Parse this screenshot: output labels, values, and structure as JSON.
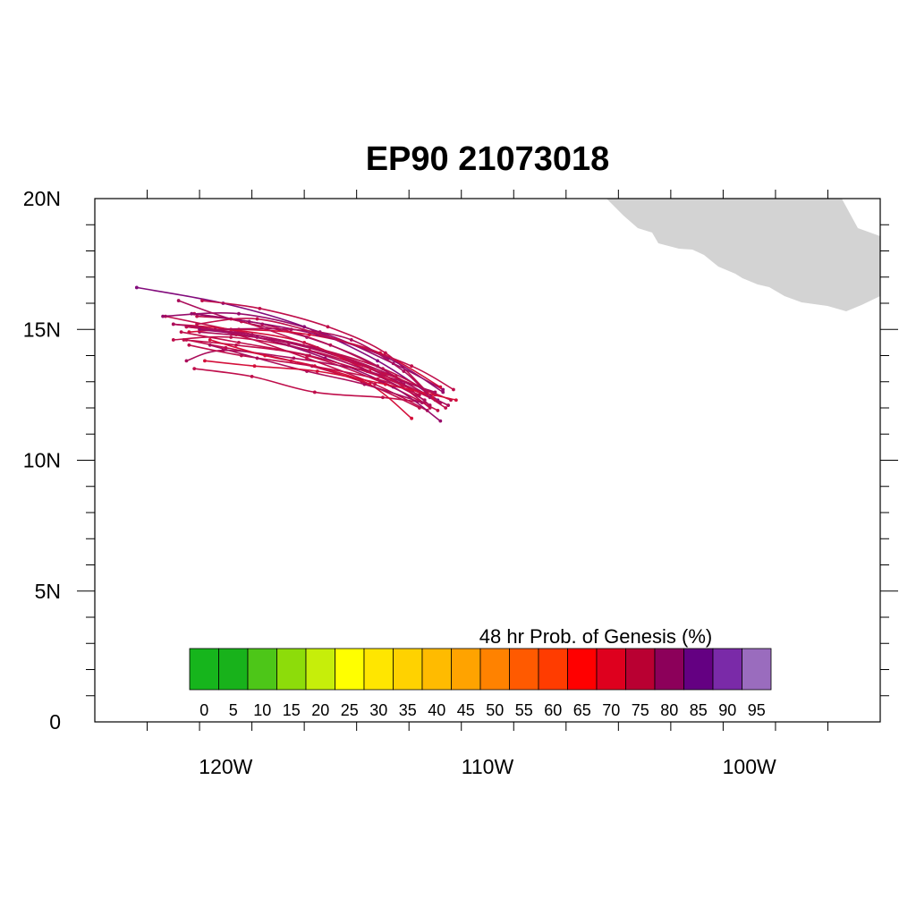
{
  "title": "EP90 21073018",
  "map": {
    "lon_range": [
      -125,
      -95
    ],
    "lat_range": [
      0,
      20
    ],
    "land_color": "#d3d3d3",
    "y_ticks": [
      {
        "value": 20,
        "label": "20N"
      },
      {
        "value": 15,
        "label": "15N"
      },
      {
        "value": 10,
        "label": "10N"
      },
      {
        "value": 5,
        "label": "5N"
      },
      {
        "value": 0,
        "label": "0"
      }
    ],
    "x_ticks": [
      {
        "value": -120,
        "label": "120W"
      },
      {
        "value": -110,
        "label": "110W"
      },
      {
        "value": -100,
        "label": "100W"
      }
    ]
  },
  "legend": {
    "title": "48 hr Prob. of Genesis (%)",
    "labels": [
      "0",
      "5",
      "10",
      "15",
      "20",
      "25",
      "30",
      "35",
      "40",
      "45",
      "50",
      "55",
      "60",
      "65",
      "70",
      "75",
      "80",
      "85",
      "90",
      "95"
    ],
    "colors": [
      "#16b51c",
      "#18b21b",
      "#4dc618",
      "#8ddc0a",
      "#c6ee0a",
      "#ffff00",
      "#ffe600",
      "#ffd200",
      "#ffbb00",
      "#ffa300",
      "#ff8200",
      "#ff5a00",
      "#ff3c00",
      "#ff0000",
      "#de001e",
      "#b90032",
      "#8c005a",
      "#640082",
      "#7a2aa8",
      "#9a6cbe"
    ]
  },
  "tracks": {
    "color_range": [
      "#e8102a",
      "#6e0a8c"
    ],
    "list": [
      {
        "prob": 70,
        "points": [
          [
            -111.6,
            12.0
          ],
          [
            -113.5,
            13.2
          ],
          [
            -116.0,
            14.4
          ],
          [
            -118.6,
            15.2
          ],
          [
            -121.2,
            15.6
          ]
        ]
      },
      {
        "prob": 85,
        "points": [
          [
            -111.9,
            12.3
          ],
          [
            -114.2,
            13.8
          ],
          [
            -117.0,
            15.1
          ],
          [
            -120.1,
            16.0
          ],
          [
            -123.4,
            16.6
          ]
        ]
      },
      {
        "prob": 70,
        "points": [
          [
            -112.0,
            12.5
          ],
          [
            -114.0,
            13.5
          ],
          [
            -116.6,
            14.3
          ],
          [
            -119.4,
            14.9
          ],
          [
            -122.3,
            15.5
          ]
        ]
      },
      {
        "prob": 75,
        "points": [
          [
            -111.8,
            12.2
          ],
          [
            -113.8,
            13.3
          ],
          [
            -116.3,
            14.2
          ],
          [
            -119.0,
            14.8
          ],
          [
            -121.5,
            15.1
          ]
        ]
      },
      {
        "prob": 70,
        "points": [
          [
            -112.3,
            12.6
          ],
          [
            -113.9,
            14.1
          ],
          [
            -116.1,
            15.1
          ],
          [
            -118.7,
            15.8
          ],
          [
            -120.9,
            16.1
          ]
        ]
      },
      {
        "prob": 75,
        "points": [
          [
            -111.5,
            12.1
          ],
          [
            -113.2,
            12.9
          ],
          [
            -115.5,
            13.9
          ],
          [
            -118.2,
            14.6
          ],
          [
            -121.0,
            14.9
          ]
        ]
      },
      {
        "prob": 70,
        "points": [
          [
            -112.6,
            12.0
          ],
          [
            -114.8,
            13.0
          ],
          [
            -117.5,
            13.8
          ],
          [
            -120.0,
            14.3
          ],
          [
            -121.5,
            14.6
          ]
        ]
      },
      {
        "prob": 65,
        "points": [
          [
            -112.1,
            12.4
          ],
          [
            -114.5,
            13.4
          ],
          [
            -117.0,
            14.5
          ],
          [
            -119.8,
            15.0
          ],
          [
            -122.0,
            15.2
          ]
        ]
      },
      {
        "prob": 70,
        "points": [
          [
            -112.4,
            12.2
          ],
          [
            -114.0,
            12.4
          ],
          [
            -116.6,
            12.6
          ],
          [
            -119.0,
            13.2
          ],
          [
            -121.2,
            13.5
          ]
        ]
      },
      {
        "prob": 80,
        "points": [
          [
            -111.7,
            12.7
          ],
          [
            -113.6,
            13.7
          ],
          [
            -116.4,
            14.9
          ],
          [
            -119.5,
            15.6
          ],
          [
            -122.4,
            15.5
          ]
        ]
      },
      {
        "prob": 70,
        "points": [
          [
            -111.9,
            11.9
          ],
          [
            -114.1,
            13.0
          ],
          [
            -116.9,
            14.0
          ],
          [
            -119.6,
            14.4
          ],
          [
            -121.6,
            14.6
          ]
        ]
      },
      {
        "prob": 75,
        "points": [
          [
            -112.2,
            12.1
          ],
          [
            -114.2,
            13.6
          ],
          [
            -116.9,
            14.7
          ],
          [
            -119.8,
            15.4
          ],
          [
            -121.8,
            16.1
          ]
        ]
      },
      {
        "prob": 70,
        "points": [
          [
            -111.4,
            12.3
          ],
          [
            -113.9,
            13.3
          ],
          [
            -116.8,
            14.2
          ],
          [
            -119.8,
            14.7
          ],
          [
            -122.0,
            14.6
          ]
        ]
      },
      {
        "prob": 65,
        "points": [
          [
            -111.8,
            12.8
          ],
          [
            -114.1,
            14.1
          ],
          [
            -116.8,
            14.8
          ],
          [
            -119.5,
            15.0
          ],
          [
            -121.4,
            14.9
          ]
        ]
      },
      {
        "prob": 75,
        "points": [
          [
            -112.0,
            12.6
          ],
          [
            -114.6,
            13.4
          ],
          [
            -117.4,
            13.9
          ],
          [
            -120.1,
            14.2
          ],
          [
            -121.5,
            13.8
          ]
        ]
      },
      {
        "prob": 70,
        "points": [
          [
            -112.3,
            11.9
          ],
          [
            -114.3,
            12.9
          ],
          [
            -116.9,
            13.9
          ],
          [
            -119.6,
            14.8
          ],
          [
            -121.5,
            15.1
          ]
        ]
      },
      {
        "prob": 65,
        "points": [
          [
            -112.9,
            11.6
          ],
          [
            -114.5,
            12.9
          ],
          [
            -116.6,
            13.6
          ],
          [
            -118.5,
            14.0
          ],
          [
            -120.6,
            14.6
          ]
        ]
      },
      {
        "prob": 80,
        "points": [
          [
            -111.8,
            11.5
          ],
          [
            -113.6,
            12.8
          ],
          [
            -116.2,
            13.9
          ],
          [
            -118.8,
            14.7
          ],
          [
            -121.0,
            15.0
          ]
        ]
      },
      {
        "prob": 70,
        "points": [
          [
            -112.6,
            12.5
          ],
          [
            -114.2,
            13.1
          ],
          [
            -116.7,
            13.6
          ],
          [
            -119.4,
            14.0
          ],
          [
            -121.4,
            14.4
          ]
        ]
      },
      {
        "prob": 75,
        "points": [
          [
            -112.4,
            12.3
          ],
          [
            -114.8,
            13.5
          ],
          [
            -117.6,
            14.4
          ],
          [
            -120.4,
            15.0
          ],
          [
            -122.0,
            15.2
          ]
        ]
      },
      {
        "prob": 70,
        "points": [
          [
            -112.2,
            12.0
          ],
          [
            -114.0,
            13.3
          ],
          [
            -116.5,
            14.3
          ],
          [
            -119.4,
            15.3
          ],
          [
            -121.1,
            15.5
          ]
        ]
      },
      {
        "prob": 75,
        "points": [
          [
            -112.5,
            12.2
          ],
          [
            -114.7,
            12.9
          ],
          [
            -116.9,
            13.4
          ],
          [
            -118.8,
            13.9
          ],
          [
            -120.6,
            14.4
          ]
        ]
      },
      {
        "prob": 80,
        "points": [
          [
            -111.7,
            12.6
          ],
          [
            -113.8,
            13.9
          ],
          [
            -116.5,
            14.8
          ],
          [
            -119.1,
            15.3
          ],
          [
            -121.3,
            15.6
          ]
        ]
      },
      {
        "prob": 70,
        "points": [
          [
            -112.0,
            12.3
          ],
          [
            -114.1,
            13.2
          ],
          [
            -116.8,
            14.0
          ],
          [
            -119.5,
            14.5
          ],
          [
            -121.7,
            14.9
          ]
        ]
      },
      {
        "prob": 65,
        "points": [
          [
            -111.2,
            12.3
          ],
          [
            -113.9,
            12.9
          ],
          [
            -116.5,
            13.4
          ],
          [
            -118.9,
            13.6
          ],
          [
            -120.8,
            13.8
          ]
        ]
      },
      {
        "prob": 75,
        "points": [
          [
            -112.2,
            12.4
          ],
          [
            -113.2,
            13.4
          ],
          [
            -115.2,
            14.6
          ],
          [
            -117.5,
            15.0
          ],
          [
            -120.7,
            15.0
          ]
        ]
      },
      {
        "prob": 70,
        "points": [
          [
            -111.3,
            12.7
          ],
          [
            -112.9,
            13.6
          ],
          [
            -115.7,
            14.6
          ],
          [
            -118.8,
            15.4
          ],
          [
            -121.1,
            15.2
          ]
        ]
      }
    ]
  }
}
